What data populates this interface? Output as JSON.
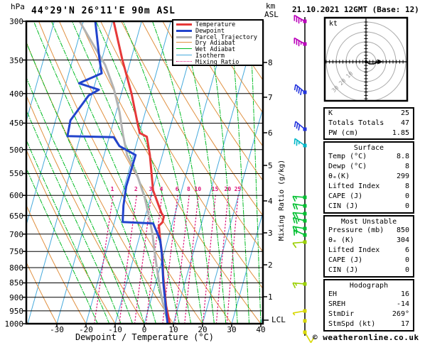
{
  "header": {
    "station_title": "44°29'N 26°11'E 90m ASL",
    "pressure_unit": "hPa",
    "km_unit": "km",
    "asl_unit": "ASL",
    "date_title": "21.10.2021 12GMT (Base: 12)"
  },
  "colors": {
    "temperature": "#e63939",
    "dewpoint": "#2244cc",
    "parcel": "#b3b3b3",
    "dry_adiabat": "#e09040",
    "wet_adiabat": "#00bb22",
    "isotherm": "#46aadc",
    "mixing_ratio": "#dd1177"
  },
  "legend": {
    "items": [
      {
        "label": "Temperature",
        "color": "#e63939",
        "width": 3,
        "dash": ""
      },
      {
        "label": "Dewpoint",
        "color": "#2244cc",
        "width": 3,
        "dash": ""
      },
      {
        "label": "Parcel Trajectory",
        "color": "#b3b3b3",
        "width": 3,
        "dash": ""
      },
      {
        "label": "Dry Adiabat",
        "color": "#e09040",
        "width": 1.5,
        "dash": ""
      },
      {
        "label": "Wet Adiabat",
        "color": "#00bb22",
        "width": 1.5,
        "dash": ""
      },
      {
        "label": "Isotherm",
        "color": "#46aadc",
        "width": 1.5,
        "dash": ""
      },
      {
        "label": "Mixing Ratio",
        "color": "#dd1177",
        "width": 1.5,
        "dash": "1 3"
      }
    ]
  },
  "chart_data": {
    "type": "skewt-log-p",
    "pressure_axis": {
      "label": "hPa",
      "ticks": [
        300,
        350,
        400,
        450,
        500,
        550,
        600,
        650,
        700,
        750,
        800,
        850,
        900,
        950,
        1000
      ],
      "top": 300,
      "bottom": 1000
    },
    "temp_axis": {
      "label": "Dewpoint / Temperature (°C)",
      "ticks": [
        -30,
        -20,
        -10,
        0,
        10,
        20,
        30,
        40
      ],
      "min": -40,
      "max": 40
    },
    "km_axis": {
      "label_lines": [
        "km",
        "ASL"
      ],
      "ticks": [
        {
          "km": "8",
          "y": 88
        },
        {
          "km": "7",
          "y": 137
        },
        {
          "km": "6",
          "y": 187
        },
        {
          "km": "5",
          "y": 233
        },
        {
          "km": "4",
          "y": 283
        },
        {
          "km": "3",
          "y": 328
        },
        {
          "km": "2",
          "y": 373
        },
        {
          "km": "1",
          "y": 418
        }
      ],
      "lcl_label": "LCL",
      "lcl_y": 451
    },
    "mixing_ratio_axis": {
      "label": "Mixing Ratio (g/kg)",
      "values": [
        1,
        2,
        3,
        4,
        6,
        8,
        10,
        15,
        20,
        25
      ],
      "label_row_y": 262
    },
    "series": {
      "temperature": [
        [
          300,
          -39.6
        ],
        [
          349,
          -33.0
        ],
        [
          400,
          -26.5
        ],
        [
          451,
          -21.5
        ],
        [
          468,
          -19.9
        ],
        [
          475,
          -17.1
        ],
        [
          511,
          -14.3
        ],
        [
          588,
          -9.8
        ],
        [
          644,
          -4.7
        ],
        [
          653,
          -3.6
        ],
        [
          668,
          -3.5
        ],
        [
          677,
          -4.4
        ],
        [
          716,
          -2.6
        ],
        [
          768,
          -0.1
        ],
        [
          824,
          1.8
        ],
        [
          876,
          3.8
        ],
        [
          932,
          5.8
        ],
        [
          1000,
          8.8
        ]
      ],
      "dewpoint": [
        [
          300,
          -45.9
        ],
        [
          350,
          -40.7
        ],
        [
          369,
          -38.7
        ],
        [
          384,
          -45.5
        ],
        [
          394,
          -38.1
        ],
        [
          403,
          -41.0
        ],
        [
          445,
          -44.9
        ],
        [
          474,
          -44.4
        ],
        [
          476,
          -28.4
        ],
        [
          493,
          -25.6
        ],
        [
          511,
          -19.2
        ],
        [
          579,
          -19.4
        ],
        [
          625,
          -18.5
        ],
        [
          667,
          -17.2
        ],
        [
          671,
          -6.6
        ],
        [
          716,
          -2.6
        ],
        [
          757,
          -0.7
        ],
        [
          852,
          2.7
        ],
        [
          953,
          6.4
        ],
        [
          1000,
          8.0
        ]
      ],
      "parcel_trajectory": [
        [
          300,
          -51.3
        ],
        [
          326,
          -45.1
        ],
        [
          357,
          -38.3
        ],
        [
          392,
          -33.1
        ],
        [
          430,
          -28.9
        ],
        [
          471,
          -25.5
        ],
        [
          511,
          -22.1
        ],
        [
          556,
          -16.5
        ],
        [
          605,
          -12.0
        ],
        [
          658,
          -8.3
        ],
        [
          700,
          -5.8
        ],
        [
          757,
          -3.1
        ],
        [
          813,
          -0.5
        ],
        [
          860,
          1.6
        ],
        [
          917,
          4.2
        ],
        [
          967,
          6.8
        ],
        [
          1000,
          8.8
        ]
      ]
    },
    "wind_barbs": [
      {
        "y": 30,
        "color": "#bb00bb",
        "full": 3,
        "half": 1,
        "angle": 150
      },
      {
        "y": 62,
        "color": "#bb00bb",
        "full": 3,
        "half": 1,
        "angle": 150
      },
      {
        "y": 130,
        "color": "#2233dd",
        "full": 4,
        "half": 0,
        "angle": 140
      },
      {
        "y": 182,
        "color": "#2233dd",
        "full": 3,
        "half": 0,
        "angle": 140
      },
      {
        "y": 205,
        "color": "#00b7c8",
        "full": 2,
        "half": 1,
        "angle": 145
      },
      {
        "y": 278,
        "color": "#00c030",
        "full": 1,
        "half": 1,
        "angle": 175
      },
      {
        "y": 290,
        "color": "#00c030",
        "full": 2,
        "half": 0,
        "angle": 170
      },
      {
        "y": 301,
        "color": "#00c030",
        "full": 2,
        "half": 0,
        "angle": 175
      },
      {
        "y": 311,
        "color": "#00c030",
        "full": 2,
        "half": 1,
        "angle": 165
      },
      {
        "y": 322,
        "color": "#00c030",
        "full": 2,
        "half": 0,
        "angle": 170
      },
      {
        "y": 331,
        "color": "#00c030",
        "full": 1,
        "half": 1,
        "angle": 155
      },
      {
        "y": 341,
        "color": "#9ad000",
        "full": 1,
        "half": 0,
        "angle": 185
      },
      {
        "y": 400,
        "color": "#9ad000",
        "full": 1,
        "half": 1,
        "angle": 175
      },
      {
        "y": 438,
        "color": "#d8d800",
        "full": 0,
        "half": 1,
        "angle": 190
      },
      {
        "y": 452,
        "color": "#d8d800",
        "full": 0,
        "half": 0,
        "angle": 0
      },
      {
        "y": 468,
        "color": "#d8d800",
        "full": 1,
        "half": 0,
        "angle": 300
      }
    ]
  },
  "hodograph": {
    "unit": "kt",
    "ring_labels": [
      "10",
      "20",
      "30"
    ],
    "trace": [
      [
        515,
        87
      ],
      [
        520,
        90
      ],
      [
        526,
        90
      ],
      [
        532,
        87
      ]
    ]
  },
  "tables": [
    {
      "title": "",
      "rows": [
        [
          "K",
          "25"
        ],
        [
          "Totals Totals",
          "47"
        ],
        [
          "PW (cm)",
          "1.85"
        ]
      ]
    },
    {
      "title": "Surface",
      "rows": [
        [
          "Temp (°C)",
          "8.8"
        ],
        [
          "Dewp (°C)",
          "8"
        ],
        [
          "θₑ(K)",
          "299"
        ],
        [
          "Lifted Index",
          "8"
        ],
        [
          "CAPE (J)",
          "0"
        ],
        [
          "CIN (J)",
          "0"
        ]
      ]
    },
    {
      "title": "Most Unstable",
      "rows": [
        [
          "Pressure (mb)",
          "850"
        ],
        [
          "θₑ (K)",
          "304"
        ],
        [
          "Lifted Index",
          "6"
        ],
        [
          "CAPE (J)",
          "0"
        ],
        [
          "CIN (J)",
          "0"
        ]
      ]
    },
    {
      "title": "Hodograph",
      "rows": [
        [
          "EH",
          "16"
        ],
        [
          "SREH",
          "-14"
        ],
        [
          "StmDir",
          "269°"
        ],
        [
          "StmSpd (kt)",
          "17"
        ]
      ]
    }
  ],
  "footer": {
    "credit": "© weatheronline.co.uk"
  }
}
